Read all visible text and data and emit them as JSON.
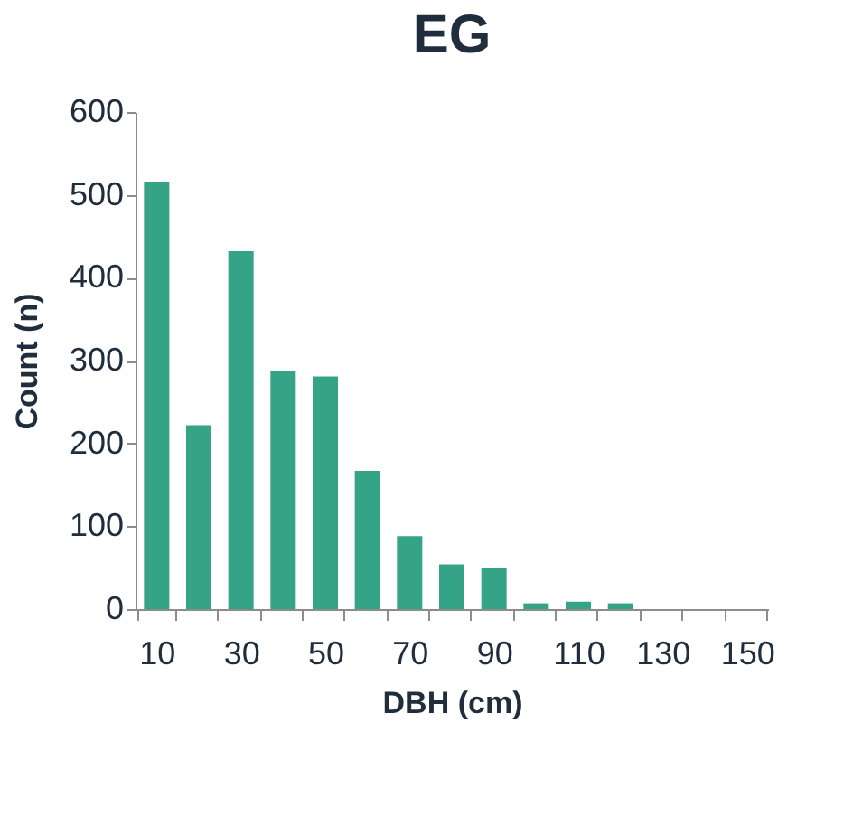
{
  "chart_data": {
    "type": "bar",
    "title": "EG",
    "xlabel": "DBH (cm)",
    "ylabel": "Count (n)",
    "categories": [
      "10",
      null,
      "30",
      null,
      "50",
      null,
      "70",
      null,
      "90",
      null,
      "110",
      null,
      "130",
      null,
      "150"
    ],
    "values": [
      516,
      222,
      432,
      287,
      281,
      167,
      88,
      54,
      49,
      7,
      9,
      7,
      0,
      0,
      0
    ],
    "color": "#35a386",
    "ylim": [
      0,
      600
    ],
    "yticks": [
      0,
      100,
      200,
      300,
      400,
      500,
      600
    ],
    "grid": false
  }
}
